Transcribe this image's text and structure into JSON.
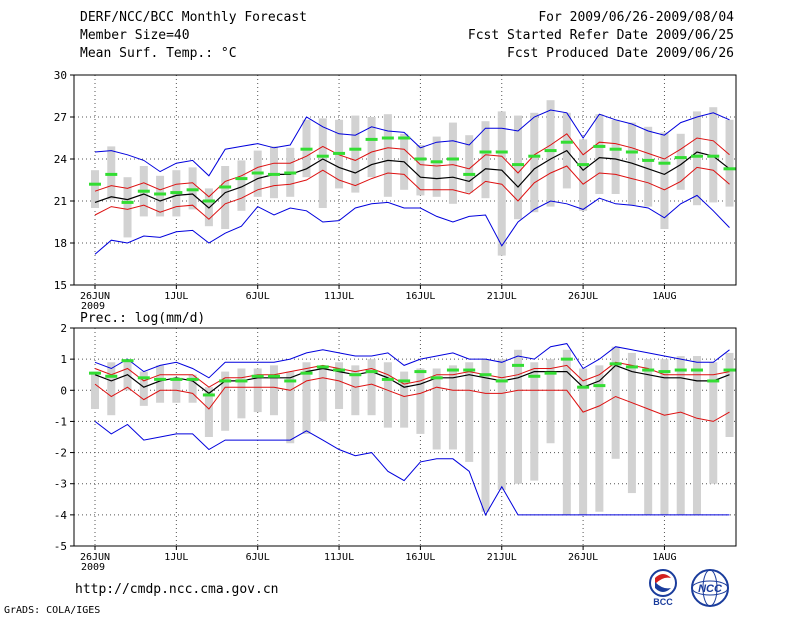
{
  "header": {
    "title": "DERF/NCC/BCC Monthly Forecast",
    "member_size": "Member Size=40",
    "variable1": "Mean Surf. Temp.: °C",
    "period": "For 2009/06/26-2009/08/04",
    "fcst_started": "Fcst Started Refer Date 2009/06/25",
    "fcst_produced": "Fcst Produced Date 2009/06/26"
  },
  "footer": {
    "url": "http://cmdp.ncc.cma.gov.cn",
    "grads": "GrADS: COLA/IGES",
    "logo_bcc": "BCC",
    "logo_ncc": "NCC"
  },
  "colors": {
    "box": "#d2d2d2",
    "median": "#33dd33",
    "mean": "#000000",
    "std": "#dd1111",
    "envelope": "#0000dd",
    "grid": "#555555"
  },
  "chart_data": [
    {
      "type": "line",
      "title": "Mean Surf. Temp.: °C",
      "ylim": [
        15,
        30
      ],
      "yticks": [
        15,
        18,
        21,
        24,
        27,
        30
      ],
      "xticks": [
        {
          "day": 0,
          "label": "26JUN"
        },
        {
          "day": 5,
          "label": "1JUL"
        },
        {
          "day": 10,
          "label": "6JUL"
        },
        {
          "day": 15,
          "label": "11JUL"
        },
        {
          "day": 20,
          "label": "16JUL"
        },
        {
          "day": 25,
          "label": "21JUL"
        },
        {
          "day": 30,
          "label": "26JUL"
        },
        {
          "day": 35,
          "label": "1AUG"
        }
      ],
      "year_label": "2009",
      "days": 40,
      "series": [
        {
          "name": "mean",
          "values": [
            20.9,
            21.3,
            21.1,
            21.5,
            21.0,
            21.4,
            21.5,
            20.5,
            21.6,
            22.0,
            22.6,
            22.9,
            22.9,
            23.3,
            24.0,
            23.4,
            23.0,
            23.6,
            23.9,
            23.8,
            22.7,
            22.6,
            22.7,
            22.4,
            23.3,
            23.2,
            22.0,
            23.3,
            24.0,
            24.6,
            23.2,
            24.1,
            24.0,
            23.7,
            23.3,
            22.9,
            23.6,
            24.5,
            24.2,
            23.3
          ]
        },
        {
          "name": "plus_std",
          "values": [
            21.7,
            22.1,
            21.9,
            22.3,
            21.8,
            22.2,
            22.3,
            21.3,
            22.4,
            22.8,
            23.4,
            23.7,
            23.7,
            24.2,
            24.9,
            24.3,
            23.9,
            24.5,
            24.8,
            24.7,
            23.6,
            23.5,
            23.6,
            23.3,
            24.3,
            24.2,
            23.0,
            24.3,
            25.0,
            25.8,
            24.3,
            25.2,
            25.1,
            24.8,
            24.4,
            24.0,
            24.7,
            25.5,
            25.3,
            24.3
          ]
        },
        {
          "name": "minus_std",
          "values": [
            20.0,
            20.6,
            20.4,
            20.7,
            20.2,
            20.6,
            20.7,
            19.7,
            20.8,
            21.2,
            21.8,
            22.1,
            22.2,
            22.5,
            23.2,
            22.5,
            22.1,
            22.6,
            23.0,
            22.9,
            21.8,
            21.8,
            21.8,
            21.5,
            22.4,
            22.2,
            21.0,
            22.3,
            23.0,
            23.5,
            22.2,
            23.0,
            22.9,
            22.6,
            22.3,
            21.8,
            22.4,
            23.4,
            23.2,
            22.2
          ]
        },
        {
          "name": "max",
          "values": [
            24.5,
            24.6,
            24.3,
            23.9,
            23.1,
            23.7,
            23.9,
            22.8,
            24.7,
            24.9,
            25.1,
            24.8,
            25.0,
            27.0,
            26.3,
            25.8,
            25.7,
            26.3,
            26.0,
            25.9,
            24.8,
            25.2,
            25.3,
            25.0,
            26.2,
            26.2,
            26.0,
            27.0,
            27.5,
            27.3,
            25.5,
            27.2,
            26.8,
            26.5,
            26.0,
            25.7,
            26.6,
            27.0,
            27.3,
            26.8
          ]
        },
        {
          "name": "min",
          "values": [
            17.2,
            18.2,
            18.0,
            18.5,
            18.4,
            18.8,
            18.9,
            18.0,
            18.7,
            19.2,
            20.6,
            20.0,
            20.5,
            20.3,
            19.5,
            19.6,
            20.5,
            20.8,
            20.9,
            20.5,
            20.5,
            19.9,
            19.5,
            19.9,
            20.0,
            17.8,
            19.5,
            20.4,
            21.0,
            20.8,
            20.4,
            21.2,
            20.8,
            20.7,
            20.5,
            19.8,
            20.8,
            21.4,
            20.3,
            19.1
          ]
        },
        {
          "name": "median",
          "values": [
            22.2,
            22.9,
            20.9,
            21.7,
            21.5,
            21.6,
            21.8,
            21.0,
            22.0,
            22.6,
            23.0,
            22.9,
            23.0,
            24.7,
            24.2,
            24.4,
            24.7,
            25.4,
            25.5,
            25.5,
            24.0,
            23.8,
            24.0,
            22.9,
            24.5,
            24.5,
            23.6,
            24.2,
            24.6,
            25.2,
            23.6,
            24.9,
            24.7,
            24.5,
            23.9,
            23.7,
            24.1,
            24.2,
            24.2,
            23.3
          ]
        },
        {
          "name": "box_high",
          "values": [
            23.2,
            24.9,
            22.7,
            23.5,
            22.8,
            23.2,
            23.4,
            21.9,
            23.5,
            23.9,
            24.6,
            24.9,
            24.8,
            26.8,
            26.9,
            26.8,
            27.1,
            27.0,
            27.2,
            25.8,
            25.0,
            25.6,
            26.6,
            25.7,
            26.7,
            27.4,
            27.1,
            27.3,
            28.2,
            27.3,
            25.4,
            27.2,
            26.8,
            26.6,
            26.3,
            25.9,
            25.8,
            27.4,
            27.7,
            26.8
          ]
        },
        {
          "name": "box_low",
          "values": [
            20.5,
            21.1,
            18.4,
            19.9,
            19.9,
            19.9,
            20.4,
            19.2,
            19.0,
            20.3,
            21.3,
            21.2,
            21.3,
            22.7,
            20.5,
            21.9,
            21.6,
            22.7,
            21.3,
            21.8,
            21.4,
            21.3,
            20.8,
            21.6,
            21.2,
            17.1,
            19.7,
            20.2,
            20.6,
            21.9,
            20.3,
            21.5,
            21.5,
            20.7,
            20.6,
            19.0,
            21.8,
            20.7,
            20.9,
            20.6
          ]
        }
      ]
    },
    {
      "type": "line",
      "title": "Prec.: log(mm/d)",
      "ylim": [
        -5,
        2
      ],
      "yticks": [
        -5,
        -4,
        -3,
        -2,
        -1,
        0,
        1,
        2
      ],
      "xticks": [
        {
          "day": 0,
          "label": "26JUN"
        },
        {
          "day": 5,
          "label": "1JUL"
        },
        {
          "day": 10,
          "label": "6JUL"
        },
        {
          "day": 15,
          "label": "11JUL"
        },
        {
          "day": 20,
          "label": "16JUL"
        },
        {
          "day": 25,
          "label": "21JUL"
        },
        {
          "day": 30,
          "label": "26JUL"
        },
        {
          "day": 35,
          "label": "1AUG"
        }
      ],
      "year_label": "2009",
      "days": 40,
      "series": [
        {
          "name": "mean",
          "values": [
            0.5,
            0.3,
            0.5,
            0.1,
            0.3,
            0.4,
            0.3,
            -0.1,
            0.3,
            0.3,
            0.4,
            0.4,
            0.4,
            0.6,
            0.7,
            0.6,
            0.5,
            0.6,
            0.4,
            0.1,
            0.2,
            0.4,
            0.4,
            0.5,
            0.4,
            0.3,
            0.4,
            0.6,
            0.6,
            0.6,
            0.1,
            0.3,
            0.8,
            0.6,
            0.5,
            0.4,
            0.4,
            0.3,
            0.3,
            0.5
          ]
        },
        {
          "name": "plus_std",
          "values": [
            0.7,
            0.5,
            0.7,
            0.3,
            0.5,
            0.5,
            0.5,
            0.1,
            0.4,
            0.4,
            0.5,
            0.5,
            0.6,
            0.7,
            0.8,
            0.7,
            0.6,
            0.7,
            0.5,
            0.2,
            0.3,
            0.5,
            0.5,
            0.6,
            0.5,
            0.4,
            0.5,
            0.7,
            0.7,
            0.8,
            0.3,
            0.5,
            0.9,
            0.8,
            0.7,
            0.5,
            0.5,
            0.5,
            0.5,
            0.6
          ]
        },
        {
          "name": "minus_std",
          "values": [
            0.2,
            -0.2,
            0.1,
            -0.3,
            0.0,
            0.0,
            -0.1,
            -0.6,
            0.1,
            0.1,
            0.1,
            0.1,
            0.0,
            0.3,
            0.4,
            0.3,
            0.1,
            0.2,
            0.0,
            -0.2,
            -0.1,
            0.1,
            0.0,
            0.0,
            -0.1,
            -0.1,
            0.0,
            0.0,
            0.0,
            0.0,
            -0.7,
            -0.5,
            -0.2,
            -0.4,
            -0.6,
            -0.8,
            -0.7,
            -0.9,
            -1.0,
            -0.7
          ]
        },
        {
          "name": "max",
          "values": [
            0.9,
            0.7,
            1.0,
            0.6,
            0.8,
            0.9,
            0.7,
            0.4,
            0.9,
            0.9,
            0.9,
            0.9,
            1.0,
            1.2,
            1.3,
            1.2,
            1.1,
            1.1,
            1.2,
            0.8,
            1.0,
            1.1,
            1.2,
            1.0,
            1.0,
            0.9,
            1.1,
            1.0,
            1.4,
            1.5,
            0.7,
            1.0,
            1.4,
            1.3,
            1.2,
            1.1,
            1.0,
            0.9,
            0.9,
            1.3
          ]
        },
        {
          "name": "min",
          "values": [
            -1.0,
            -1.4,
            -1.1,
            -1.6,
            -1.5,
            -1.4,
            -1.4,
            -1.9,
            -1.6,
            -1.6,
            -1.6,
            -1.6,
            -1.6,
            -1.3,
            -1.6,
            -1.9,
            -2.1,
            -2.0,
            -2.6,
            -2.9,
            -2.3,
            -2.2,
            -2.2,
            -2.6,
            -4.0,
            -3.1,
            -4.0,
            -4.0,
            -4.0,
            -4.0,
            -4.0,
            -4.0,
            -4.0,
            -4.0,
            -4.0,
            -4.0,
            -4.0,
            -4.0,
            -4.0,
            -4.0
          ]
        },
        {
          "name": "median",
          "values": [
            0.55,
            0.45,
            0.95,
            0.4,
            0.35,
            0.35,
            0.35,
            -0.15,
            0.3,
            0.3,
            0.45,
            0.45,
            0.3,
            0.55,
            0.75,
            0.65,
            0.5,
            0.6,
            0.35,
            0.3,
            0.6,
            0.4,
            0.65,
            0.65,
            0.5,
            0.3,
            0.8,
            0.45,
            0.55,
            1.0,
            0.1,
            0.15,
            0.85,
            0.75,
            0.65,
            0.6,
            0.65,
            0.65,
            0.3,
            0.65
          ]
        },
        {
          "name": "box_high",
          "values": [
            0.6,
            0.9,
            1.0,
            0.6,
            0.8,
            0.4,
            0.5,
            0.1,
            0.6,
            0.7,
            0.7,
            0.8,
            0.6,
            0.9,
            0.8,
            0.9,
            0.8,
            1.0,
            0.9,
            0.6,
            0.7,
            0.7,
            0.8,
            0.9,
            1.0,
            1.0,
            1.3,
            0.9,
            1.0,
            1.3,
            0.7,
            0.8,
            1.4,
            1.2,
            1.0,
            1.0,
            1.1,
            1.1,
            0.9,
            1.2
          ]
        },
        {
          "name": "box_low",
          "values": [
            -0.6,
            -0.8,
            0.0,
            -0.5,
            -0.4,
            -0.4,
            -0.4,
            -1.5,
            -1.3,
            -0.9,
            -0.7,
            -0.8,
            -1.7,
            -1.4,
            -1.0,
            -0.6,
            -0.8,
            -0.8,
            -1.2,
            -1.2,
            -1.4,
            -1.9,
            -1.9,
            -2.3,
            -3.9,
            -3.2,
            -3.0,
            -2.9,
            -1.7,
            -4.0,
            -4.0,
            -3.9,
            -2.2,
            -3.3,
            -4.0,
            -4.0,
            -4.0,
            -4.0,
            -3.0,
            -1.5
          ]
        }
      ]
    }
  ]
}
